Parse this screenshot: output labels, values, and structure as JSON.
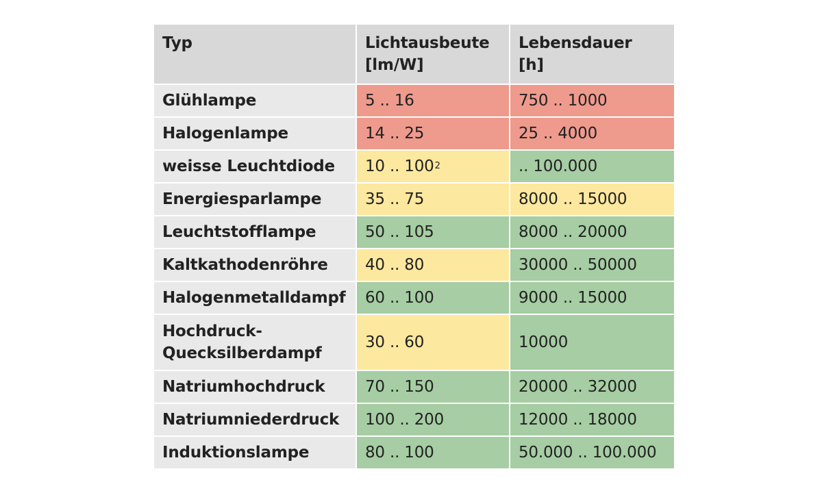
{
  "header": {
    "col_type": "Typ",
    "col_efficacy": "Lichtausbeute\n[lm/W]",
    "col_lifetime": "Lebensdauer\n[h]"
  },
  "colors": {
    "red": "#ee9a8d",
    "yellow": "#fce89e",
    "green": "#a6cda3",
    "header_bg": "#d8d8d8",
    "name_bg": "#e9e9e9"
  },
  "rows": [
    {
      "typ": "Glühlampe",
      "lichtausbeute": "5 .. 16",
      "lebensdauer": "750 .. 1000",
      "eff_color": "red",
      "life_color": "red"
    },
    {
      "typ": "Halogenlampe",
      "lichtausbeute": "14 .. 25",
      "lebensdauer": "25 .. 4000",
      "eff_color": "red",
      "life_color": "red"
    },
    {
      "typ": "weisse Leuchtdiode",
      "lichtausbeute": "10 .. 100",
      "lichtausbeute_sup": "2",
      "lebensdauer": ".. 100.000",
      "eff_color": "yellow",
      "life_color": "green"
    },
    {
      "typ": "Energiesparlampe",
      "lichtausbeute": "35 .. 75",
      "lebensdauer": "8000 .. 15000",
      "eff_color": "yellow",
      "life_color": "yellow"
    },
    {
      "typ": "Leuchtstofflampe",
      "lichtausbeute": "50 .. 105",
      "lebensdauer": "8000 .. 20000",
      "eff_color": "green",
      "life_color": "green"
    },
    {
      "typ": "Kaltkathodenröhre",
      "lichtausbeute": "40 .. 80",
      "lebensdauer": "30000 .. 50000",
      "eff_color": "yellow",
      "life_color": "green"
    },
    {
      "typ": "Halogenmetalldampf",
      "lichtausbeute": "60 .. 100",
      "lebensdauer": "9000 .. 15000",
      "eff_color": "green",
      "life_color": "green"
    },
    {
      "typ": "Hochdruck-\nQuecksilberdampf",
      "lichtausbeute": "30 .. 60",
      "lebensdauer": "10000",
      "eff_color": "yellow",
      "life_color": "green"
    },
    {
      "typ": "Natriumhochdruck",
      "lichtausbeute": "70 .. 150",
      "lebensdauer": "20000 .. 32000",
      "eff_color": "green",
      "life_color": "green"
    },
    {
      "typ": "Natriumniederdruck",
      "lichtausbeute": "100 .. 200",
      "lebensdauer": "12000 .. 18000",
      "eff_color": "green",
      "life_color": "green"
    },
    {
      "typ": "Induktionslampe",
      "lichtausbeute": "80 .. 100",
      "lebensdauer": "50.000 .. 100.000",
      "eff_color": "green",
      "life_color": "green"
    }
  ]
}
